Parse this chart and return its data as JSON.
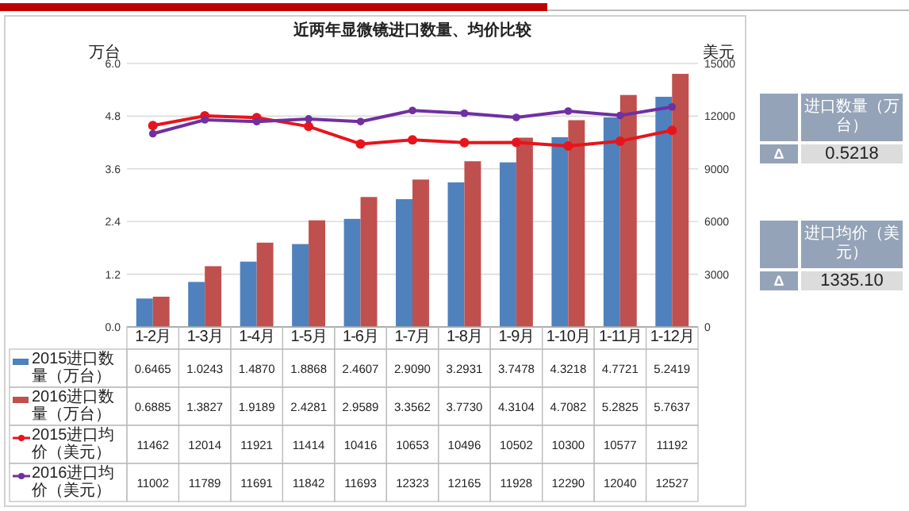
{
  "chart_data": [
    {
      "type": "bar",
      "title": "近两年显微镜进口数量、均价比较",
      "ylabel": "万台",
      "y2label": "美元",
      "categories": [
        "1-2月",
        "1-3月",
        "1-4月",
        "1-5月",
        "1-6月",
        "1-7月",
        "1-8月",
        "1-9月",
        "1-10月",
        "1-11月",
        "1-12月"
      ],
      "ylim": [
        0,
        6
      ],
      "yticks": [
        {
          "value": 0,
          "label": "0.0"
        },
        {
          "value": 1.2,
          "label": "1.2"
        },
        {
          "value": 2.4,
          "label": "2.4"
        },
        {
          "value": 3.6,
          "label": "3.6"
        },
        {
          "value": 4.8,
          "label": "4.8"
        },
        {
          "value": 6,
          "label": "6.0"
        }
      ],
      "y2lim": [
        0,
        15000
      ],
      "y2ticks": [
        0,
        3000,
        6000,
        9000,
        12000,
        15000
      ],
      "grid": "y",
      "legend": "bottom",
      "marker": "circle",
      "series": [
        {
          "name": "2015进口数量（万台）",
          "color": "#4f81bd",
          "values": [
            0.6465,
            1.0243,
            1.487,
            1.8868,
            2.4607,
            2.909,
            3.2931,
            3.7478,
            4.3218,
            4.7721,
            5.2419
          ],
          "value_labels": [
            "0.6465",
            "1.0243",
            "1.4870",
            "1.8868",
            "2.4607",
            "2.9090",
            "3.2931",
            "3.7478",
            "4.3218",
            "4.7721",
            "5.2419"
          ]
        },
        {
          "name": "2016进口数量（万台）",
          "color": "#c0504d",
          "values": [
            0.6885,
            1.3827,
            1.9189,
            2.4281,
            2.9589,
            3.3562,
            3.773,
            4.3104,
            4.7082,
            5.2825,
            5.7637
          ],
          "value_labels": [
            "0.6885",
            "1.3827",
            "1.9189",
            "2.4281",
            "2.9589",
            "3.3562",
            "3.7730",
            "4.3104",
            "4.7082",
            "5.2825",
            "5.7637"
          ]
        },
        {
          "name": "2015进口均价（美元）",
          "type": "line",
          "axis": "y2",
          "color": "#e8141c",
          "values": [
            11462,
            12014,
            11921,
            11414,
            10416,
            10653,
            10496,
            10502,
            10300,
            10577,
            11192
          ],
          "value_labels": [
            "11462",
            "12014",
            "11921",
            "11414",
            "10416",
            "10653",
            "10496",
            "10502",
            "10300",
            "10577",
            "11192"
          ]
        },
        {
          "name": "2016进口均价（美元）",
          "type": "line",
          "axis": "y2",
          "color": "#7030a0",
          "values": [
            11002,
            11789,
            11691,
            11842,
            11693,
            12323,
            12165,
            11928,
            12290,
            12040,
            12527
          ],
          "value_labels": [
            "11002",
            "11789",
            "11691",
            "11842",
            "11693",
            "12323",
            "12165",
            "11928",
            "12290",
            "12040",
            "12527"
          ]
        }
      ]
    },
    {
      "type": "other",
      "annotations": [
        "进口数量（万台）",
        "Δ",
        "0.5218",
        "进口均价（美元）",
        "Δ",
        "1335.10"
      ]
    }
  ]
}
